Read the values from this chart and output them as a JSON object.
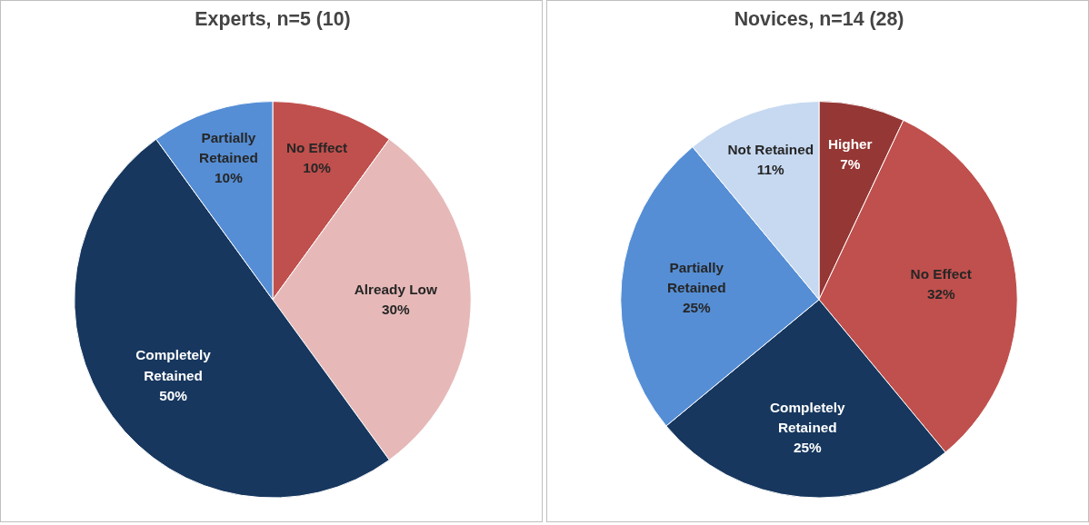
{
  "chart_data": [
    {
      "type": "pie",
      "title": "Experts, n=5 (10)",
      "categories": [
        "No Effect",
        "Already Low",
        "Completely Retained",
        "Partially Retained"
      ],
      "values": [
        10,
        30,
        50,
        10
      ],
      "value_labels": [
        "10%",
        "30%",
        "50%",
        "10%"
      ],
      "colors": [
        "#c0504d",
        "#e6b9b8",
        "#17375e",
        "#558ed5"
      ],
      "legend": false
    },
    {
      "type": "pie",
      "title": "Novices, n=14 (28)",
      "categories": [
        "Higher",
        "No Effect",
        "Completely Retained",
        "Partially Retained",
        "Not Retained"
      ],
      "values": [
        7,
        32,
        25,
        25,
        11
      ],
      "value_labels": [
        "7%",
        "32%",
        "25%",
        "25%",
        "11%"
      ],
      "colors": [
        "#953735",
        "#c0504d",
        "#17375e",
        "#558ed5",
        "#c6d9f1"
      ],
      "legend": false
    }
  ]
}
